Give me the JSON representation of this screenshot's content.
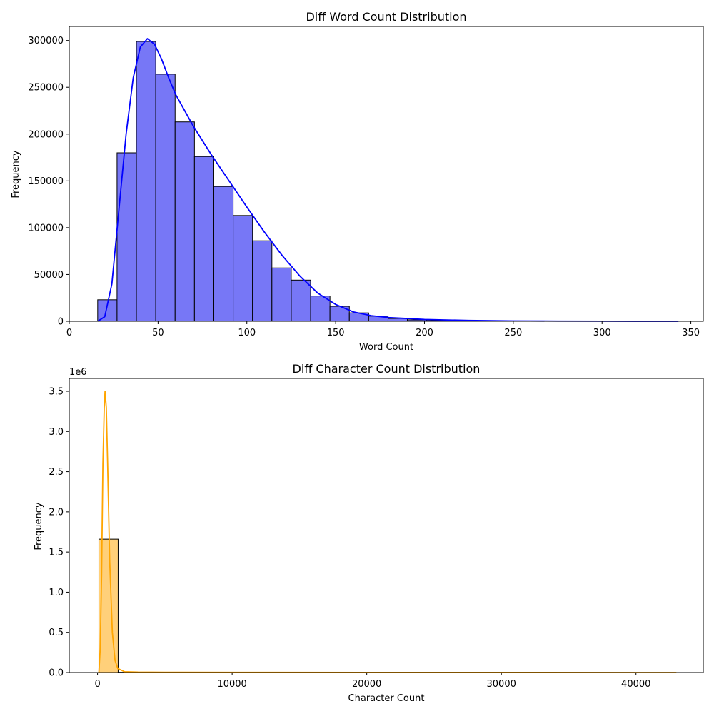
{
  "chart_data": [
    {
      "type": "bar",
      "title": "Diff Word Count Distribution",
      "xlabel": "Word Count",
      "ylabel": "Frequency",
      "xlim": [
        0,
        357
      ],
      "ylim": [
        0,
        315000
      ],
      "xticks": [
        "0",
        "50",
        "100",
        "150",
        "200",
        "250",
        "300",
        "350"
      ],
      "yticks": [
        "0",
        "50000",
        "100000",
        "150000",
        "200000",
        "250000",
        "300000"
      ],
      "bin_start": 16,
      "bin_width": 10.9,
      "values": [
        23000,
        180000,
        299000,
        264000,
        213000,
        176000,
        144000,
        113000,
        86000,
        57000,
        44000,
        27000,
        16000,
        9000,
        5500,
        3000,
        1500,
        800,
        400,
        200,
        100,
        60,
        30,
        20,
        10,
        5,
        3,
        2,
        1,
        1
      ],
      "bar_color": "#7777f6",
      "kde_color": "#0000ff",
      "kde": [
        [
          16,
          0
        ],
        [
          20,
          5000
        ],
        [
          24,
          40000
        ],
        [
          28,
          120000
        ],
        [
          32,
          200000
        ],
        [
          36,
          260000
        ],
        [
          40,
          293000
        ],
        [
          44,
          302000
        ],
        [
          48,
          296000
        ],
        [
          52,
          280000
        ],
        [
          56,
          260000
        ],
        [
          60,
          242000
        ],
        [
          70,
          208000
        ],
        [
          80,
          178000
        ],
        [
          90,
          150000
        ],
        [
          100,
          122000
        ],
        [
          110,
          95000
        ],
        [
          120,
          70000
        ],
        [
          130,
          48000
        ],
        [
          140,
          30000
        ],
        [
          150,
          18000
        ],
        [
          160,
          10000
        ],
        [
          170,
          6000
        ],
        [
          180,
          4000
        ],
        [
          190,
          3000
        ],
        [
          200,
          2000
        ],
        [
          225,
          900
        ],
        [
          250,
          400
        ],
        [
          275,
          200
        ],
        [
          300,
          80
        ],
        [
          343,
          20
        ]
      ]
    },
    {
      "type": "bar",
      "title": "Diff Character Count Distribution",
      "xlabel": "Character Count",
      "ylabel": "Frequency",
      "yscale_label": "1e6",
      "xlim": [
        -2100,
        45000
      ],
      "ylim": [
        0,
        3.66
      ],
      "xticks": [
        "0",
        "10000",
        "20000",
        "30000",
        "40000"
      ],
      "yticks": [
        "0.0",
        "0.5",
        "1.0",
        "1.5",
        "2.0",
        "2.5",
        "3.0",
        "3.5"
      ],
      "bin_start": 100,
      "bin_width": 1430,
      "values": [
        1.66,
        0.003,
        0.0008,
        0.0003,
        0.0001
      ],
      "bar_color": "#ffd07a",
      "kde_color": "#ffa500",
      "kde": [
        [
          100,
          0
        ],
        [
          200,
          0.3
        ],
        [
          300,
          1.2
        ],
        [
          400,
          2.6
        ],
        [
          500,
          3.3
        ],
        [
          560,
          3.5
        ],
        [
          650,
          3.3
        ],
        [
          750,
          2.6
        ],
        [
          900,
          1.4
        ],
        [
          1100,
          0.5
        ],
        [
          1300,
          0.15
        ],
        [
          1500,
          0.05
        ],
        [
          2000,
          0.01
        ],
        [
          3000,
          0.005
        ],
        [
          5000,
          0.003
        ],
        [
          10000,
          0.002
        ],
        [
          20000,
          0.001
        ],
        [
          30000,
          0.0005
        ],
        [
          43000,
          0.0002
        ]
      ]
    }
  ]
}
